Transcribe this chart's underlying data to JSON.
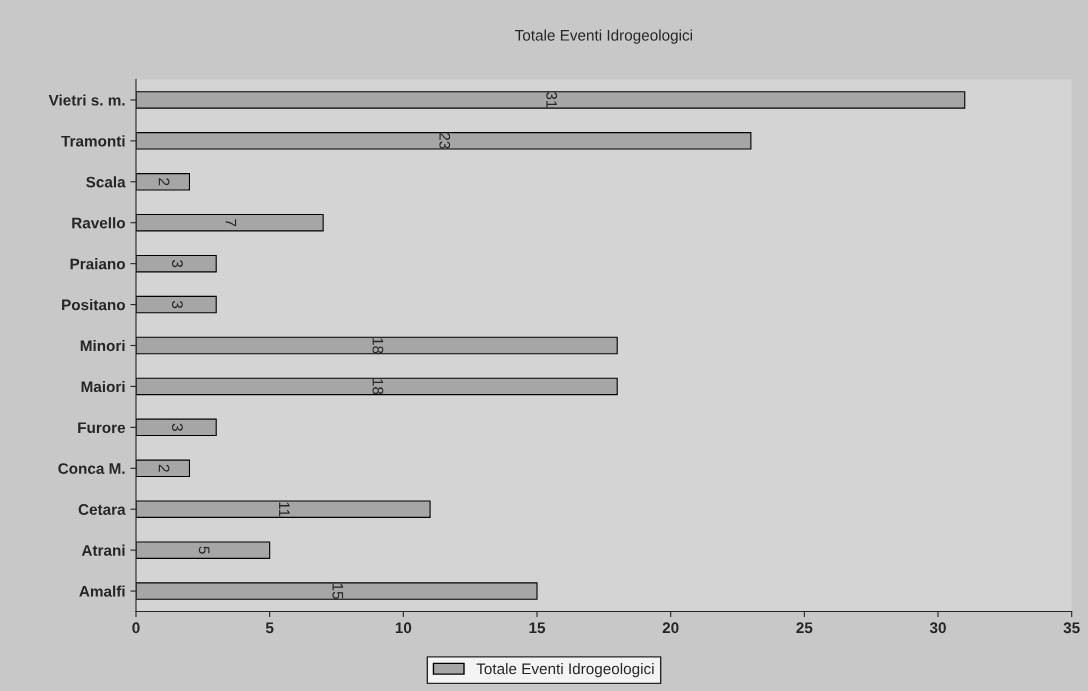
{
  "chart_data": {
    "type": "bar",
    "orientation": "horizontal",
    "title": "Totale Eventi Idrogeologici",
    "categories": [
      "Vietri s. m.",
      "Tramonti",
      "Scala",
      "Ravello",
      "Praiano",
      "Positano",
      "Minori",
      "Maiori",
      "Furore",
      "Conca M.",
      "Cetara",
      "Atrani",
      "Amalfi"
    ],
    "series": [
      {
        "name": "Totale Eventi Idrogeologici",
        "color": "#a6a6a6",
        "values": [
          31,
          23,
          2,
          7,
          3,
          3,
          18,
          18,
          3,
          2,
          11,
          5,
          15
        ]
      }
    ],
    "xlim": [
      0,
      35
    ],
    "xticks": [
      0,
      5,
      10,
      15,
      20,
      25,
      30,
      35
    ],
    "data_labels": true,
    "grid": false,
    "legend": "bottom"
  }
}
